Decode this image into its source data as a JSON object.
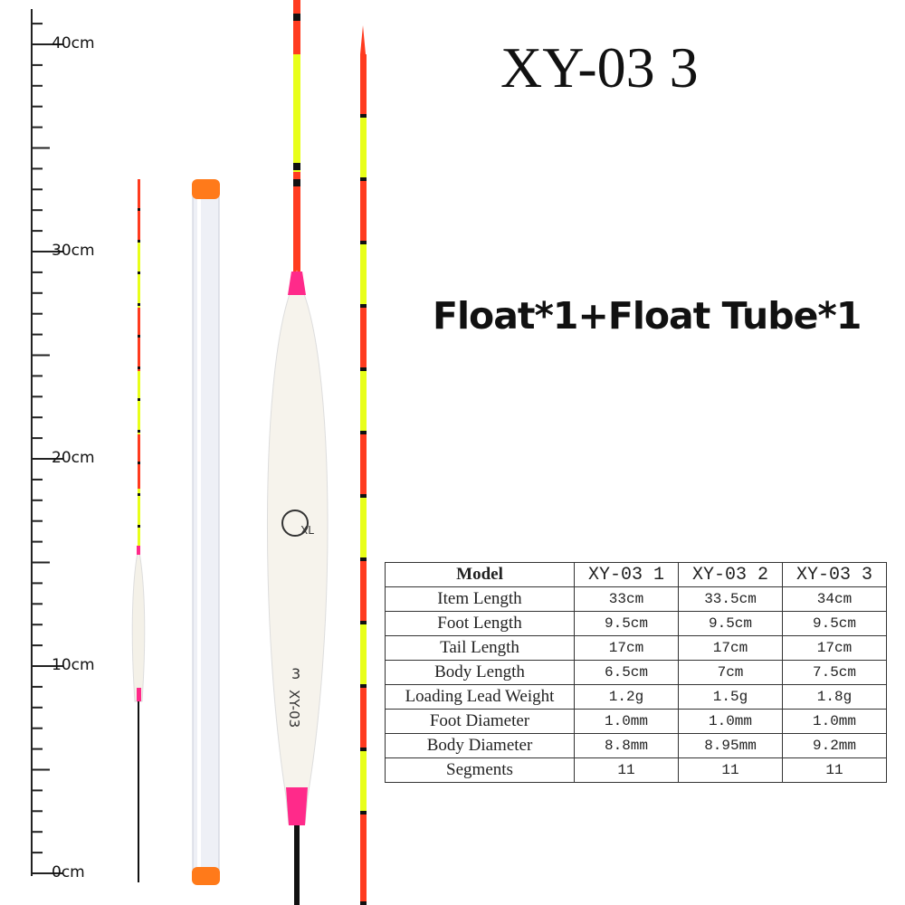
{
  "ruler": {
    "labels": [
      "40cm",
      "30cm",
      "20cm",
      "10cm",
      "0cm"
    ]
  },
  "title": "XY-03 3",
  "subtitle": "Float*1+Float Tube*1",
  "float_marking": {
    "logo": "XL",
    "model": "XY-03",
    "number": "3"
  },
  "table": {
    "headers": [
      "Model",
      "XY-03 1",
      "XY-03 2",
      "XY-03 3"
    ],
    "rows": [
      [
        "Item Length",
        "33cm",
        "33.5cm",
        "34cm"
      ],
      [
        "Foot Length",
        "9.5cm",
        "9.5cm",
        "9.5cm"
      ],
      [
        "Tail Length",
        "17cm",
        "17cm",
        "17cm"
      ],
      [
        "Body Length",
        "6.5cm",
        "7cm",
        "7.5cm"
      ],
      [
        "Loading Lead Weight",
        "1.2g",
        "1.5g",
        "1.8g"
      ],
      [
        "Foot Diameter",
        "1.0mm",
        "1.0mm",
        "1.0mm"
      ],
      [
        "Body Diameter",
        "8.8mm",
        "8.95mm",
        "9.2mm"
      ],
      [
        "Segments",
        "11",
        "11",
        "11"
      ]
    ]
  },
  "colors": {
    "red": "#ff3b1f",
    "yellow": "#e8ff1a",
    "pink": "#ff2a8a",
    "orange": "#ff7a1a"
  }
}
